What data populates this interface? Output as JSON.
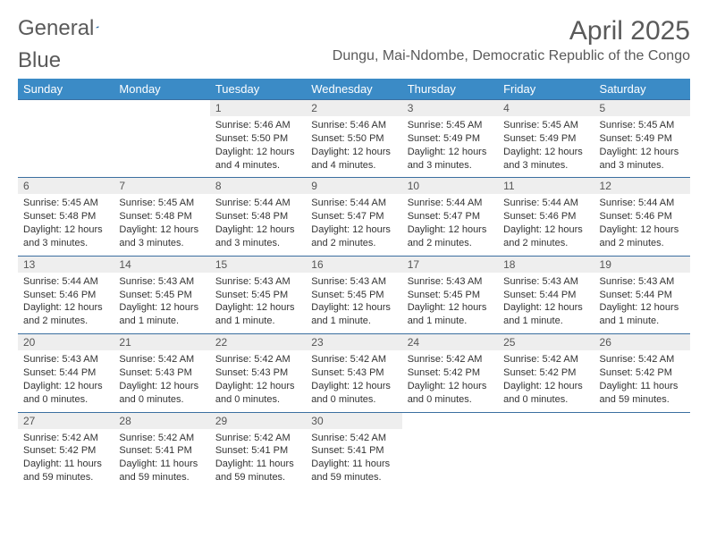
{
  "logo": {
    "text1": "General",
    "text2": "Blue",
    "mark_color": "#2f6fa8"
  },
  "title": "April 2025",
  "location": "Dungu, Mai-Ndombe, Democratic Republic of the Congo",
  "colors": {
    "header_bg": "#3b8bc6",
    "header_fg": "#ffffff",
    "rule": "#3b6fa0",
    "daynum_bg": "#eeeeee",
    "text": "#5a5a5a"
  },
  "day_names": [
    "Sunday",
    "Monday",
    "Tuesday",
    "Wednesday",
    "Thursday",
    "Friday",
    "Saturday"
  ],
  "weeks": [
    {
      "nums": [
        "",
        "",
        "1",
        "2",
        "3",
        "4",
        "5"
      ],
      "cells": [
        null,
        null,
        {
          "sr": "5:46 AM",
          "ss": "5:50 PM",
          "dl": "12 hours and 4 minutes."
        },
        {
          "sr": "5:46 AM",
          "ss": "5:50 PM",
          "dl": "12 hours and 4 minutes."
        },
        {
          "sr": "5:45 AM",
          "ss": "5:49 PM",
          "dl": "12 hours and 3 minutes."
        },
        {
          "sr": "5:45 AM",
          "ss": "5:49 PM",
          "dl": "12 hours and 3 minutes."
        },
        {
          "sr": "5:45 AM",
          "ss": "5:49 PM",
          "dl": "12 hours and 3 minutes."
        }
      ]
    },
    {
      "nums": [
        "6",
        "7",
        "8",
        "9",
        "10",
        "11",
        "12"
      ],
      "cells": [
        {
          "sr": "5:45 AM",
          "ss": "5:48 PM",
          "dl": "12 hours and 3 minutes."
        },
        {
          "sr": "5:45 AM",
          "ss": "5:48 PM",
          "dl": "12 hours and 3 minutes."
        },
        {
          "sr": "5:44 AM",
          "ss": "5:48 PM",
          "dl": "12 hours and 3 minutes."
        },
        {
          "sr": "5:44 AM",
          "ss": "5:47 PM",
          "dl": "12 hours and 2 minutes."
        },
        {
          "sr": "5:44 AM",
          "ss": "5:47 PM",
          "dl": "12 hours and 2 minutes."
        },
        {
          "sr": "5:44 AM",
          "ss": "5:46 PM",
          "dl": "12 hours and 2 minutes."
        },
        {
          "sr": "5:44 AM",
          "ss": "5:46 PM",
          "dl": "12 hours and 2 minutes."
        }
      ]
    },
    {
      "nums": [
        "13",
        "14",
        "15",
        "16",
        "17",
        "18",
        "19"
      ],
      "cells": [
        {
          "sr": "5:44 AM",
          "ss": "5:46 PM",
          "dl": "12 hours and 2 minutes."
        },
        {
          "sr": "5:43 AM",
          "ss": "5:45 PM",
          "dl": "12 hours and 1 minute."
        },
        {
          "sr": "5:43 AM",
          "ss": "5:45 PM",
          "dl": "12 hours and 1 minute."
        },
        {
          "sr": "5:43 AM",
          "ss": "5:45 PM",
          "dl": "12 hours and 1 minute."
        },
        {
          "sr": "5:43 AM",
          "ss": "5:45 PM",
          "dl": "12 hours and 1 minute."
        },
        {
          "sr": "5:43 AM",
          "ss": "5:44 PM",
          "dl": "12 hours and 1 minute."
        },
        {
          "sr": "5:43 AM",
          "ss": "5:44 PM",
          "dl": "12 hours and 1 minute."
        }
      ]
    },
    {
      "nums": [
        "20",
        "21",
        "22",
        "23",
        "24",
        "25",
        "26"
      ],
      "cells": [
        {
          "sr": "5:43 AM",
          "ss": "5:44 PM",
          "dl": "12 hours and 0 minutes."
        },
        {
          "sr": "5:42 AM",
          "ss": "5:43 PM",
          "dl": "12 hours and 0 minutes."
        },
        {
          "sr": "5:42 AM",
          "ss": "5:43 PM",
          "dl": "12 hours and 0 minutes."
        },
        {
          "sr": "5:42 AM",
          "ss": "5:43 PM",
          "dl": "12 hours and 0 minutes."
        },
        {
          "sr": "5:42 AM",
          "ss": "5:42 PM",
          "dl": "12 hours and 0 minutes."
        },
        {
          "sr": "5:42 AM",
          "ss": "5:42 PM",
          "dl": "12 hours and 0 minutes."
        },
        {
          "sr": "5:42 AM",
          "ss": "5:42 PM",
          "dl": "11 hours and 59 minutes."
        }
      ]
    },
    {
      "nums": [
        "27",
        "28",
        "29",
        "30",
        "",
        "",
        ""
      ],
      "cells": [
        {
          "sr": "5:42 AM",
          "ss": "5:42 PM",
          "dl": "11 hours and 59 minutes."
        },
        {
          "sr": "5:42 AM",
          "ss": "5:41 PM",
          "dl": "11 hours and 59 minutes."
        },
        {
          "sr": "5:42 AM",
          "ss": "5:41 PM",
          "dl": "11 hours and 59 minutes."
        },
        {
          "sr": "5:42 AM",
          "ss": "5:41 PM",
          "dl": "11 hours and 59 minutes."
        },
        null,
        null,
        null
      ]
    }
  ],
  "labels": {
    "sunrise": "Sunrise: ",
    "sunset": "Sunset: ",
    "daylight": "Daylight: "
  }
}
